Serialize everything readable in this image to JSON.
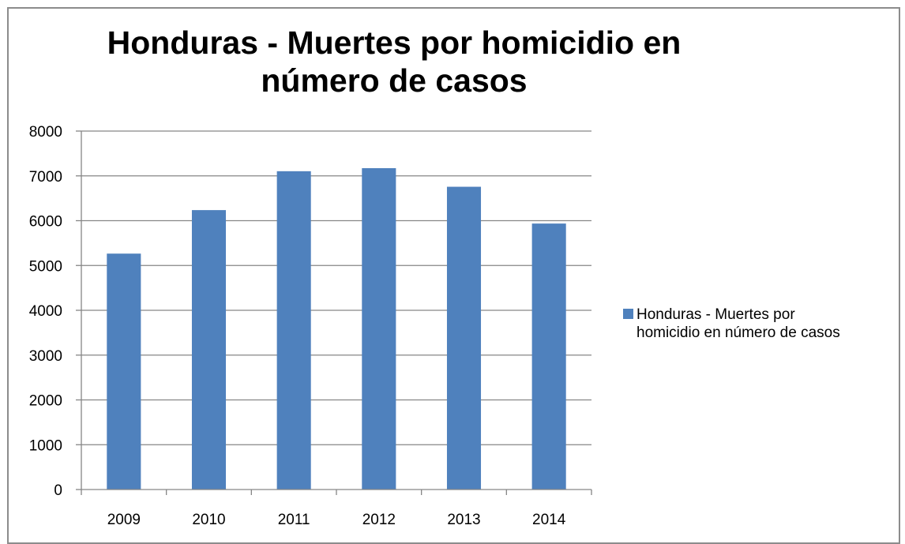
{
  "chart_data": {
    "type": "bar",
    "title": "Honduras - Muertes por homicidio en\nnúmero de casos",
    "categories": [
      "2009",
      "2010",
      "2011",
      "2012",
      "2013",
      "2014"
    ],
    "series": [
      {
        "name": "Honduras - Muertes por homicidio en número de casos",
        "values": [
          5265,
          6236,
          7104,
          7172,
          6757,
          5936
        ],
        "color": "#4f81bd"
      }
    ],
    "ylim": [
      0,
      8000
    ],
    "yticks": [
      "0",
      "1000",
      "2000",
      "3000",
      "4000",
      "5000",
      "6000",
      "7000",
      "8000"
    ],
    "ytick_values": [
      0,
      1000,
      2000,
      3000,
      4000,
      5000,
      6000,
      7000,
      8000
    ],
    "grid": true,
    "legend_position": "right",
    "legend": {
      "line1": "Honduras - Muertes por",
      "line2": "homicidio en número de casos"
    },
    "colors": {
      "bar": "#4f81bd",
      "grid": "#868686",
      "frame": "#8c8c8c"
    }
  }
}
